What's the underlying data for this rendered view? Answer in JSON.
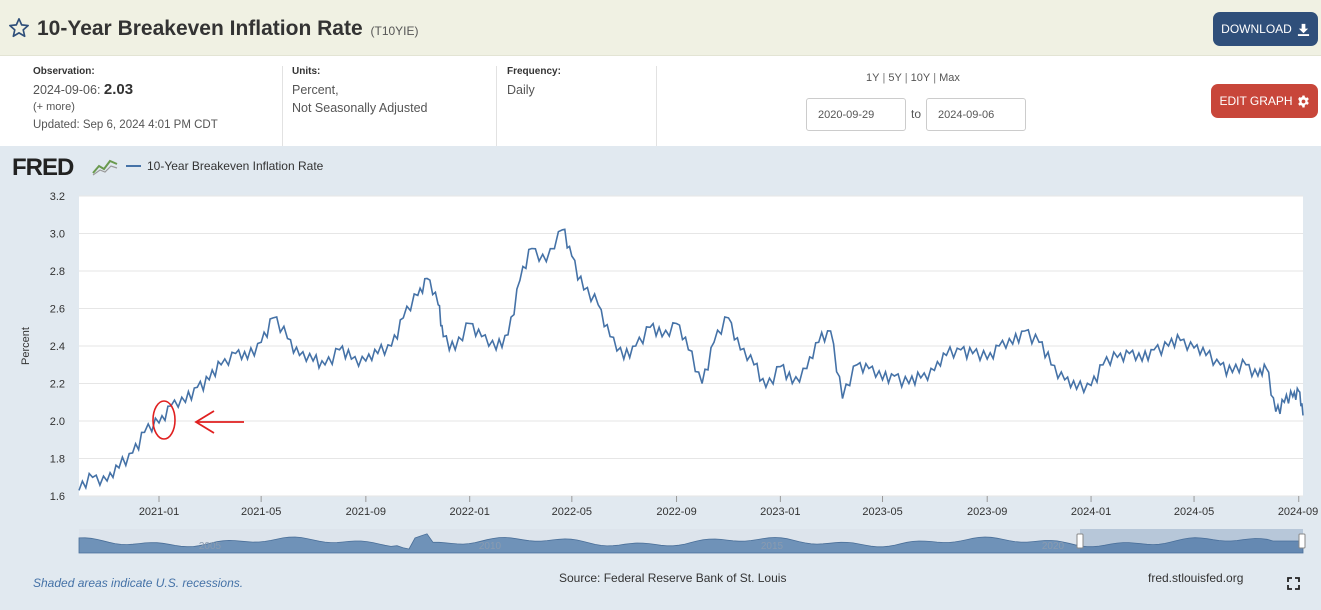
{
  "header": {
    "title": "10-Year Breakeven Inflation Rate",
    "series_id": "(T10YIE)",
    "star_icon": "star-outline-icon",
    "download_label": "DOWNLOAD",
    "download_icon": "download-icon"
  },
  "meta": {
    "observation_label": "Observation:",
    "observation_date": "2024-09-06:",
    "observation_value": "2.03",
    "more": "(+ more)",
    "updated": "Updated: Sep 6, 2024 4:01 PM CDT",
    "units_label": "Units:",
    "units_line1": "Percent,",
    "units_line2": "Not Seasonally Adjusted",
    "frequency_label": "Frequency:",
    "frequency_value": "Daily"
  },
  "range": {
    "options": [
      "1Y",
      "5Y",
      "10Y",
      "Max"
    ],
    "start": "2020-09-29",
    "to_label": "to",
    "end": "2024-09-06"
  },
  "edit_graph_label": "EDIT GRAPH",
  "edit_icon": "gear-icon",
  "graph": {
    "logo": "FRED",
    "recession_note": "Shaded areas indicate U.S. recessions.",
    "source": "Source: Federal Reserve Bank of St. Louis",
    "url": "fred.stlouisfed.org",
    "fullscreen_icon": "fullscreen-icon",
    "navigator_years": [
      "2005",
      "2010",
      "2015",
      "2020"
    ]
  },
  "colors": {
    "line": "#4572a7",
    "annotation": "#e02020",
    "header_bg": "#f0f1e3",
    "download_bg": "#2f4f7a",
    "edit_bg": "#c8463a"
  },
  "chart_data": {
    "type": "line",
    "ylabel": "Percent",
    "ylim": [
      1.6,
      3.2
    ],
    "yticks": [
      "1.6",
      "1.8",
      "2.0",
      "2.2",
      "2.4",
      "2.6",
      "2.8",
      "3.0",
      "3.2"
    ],
    "xticks": [
      "2021-01",
      "2021-05",
      "2021-09",
      "2022-01",
      "2022-05",
      "2022-09",
      "2023-01",
      "2023-05",
      "2023-09",
      "2024-01",
      "2024-05",
      "2024-09"
    ],
    "grid": true,
    "legend_position": "top-left",
    "series": [
      {
        "name": "10-Year Breakeven Inflation Rate",
        "points": [
          [
            "2020-09-29",
            1.63
          ],
          [
            "2020-10-15",
            1.7
          ],
          [
            "2020-11-01",
            1.68
          ],
          [
            "2020-11-15",
            1.75
          ],
          [
            "2020-12-01",
            1.83
          ],
          [
            "2020-12-15",
            1.94
          ],
          [
            "2021-01-01",
            1.99
          ],
          [
            "2021-01-15",
            2.08
          ],
          [
            "2021-02-01",
            2.1
          ],
          [
            "2021-02-15",
            2.18
          ],
          [
            "2021-03-01",
            2.22
          ],
          [
            "2021-03-15",
            2.3
          ],
          [
            "2021-04-01",
            2.36
          ],
          [
            "2021-04-15",
            2.33
          ],
          [
            "2021-05-01",
            2.42
          ],
          [
            "2021-05-15",
            2.55
          ],
          [
            "2021-06-01",
            2.44
          ],
          [
            "2021-06-15",
            2.35
          ],
          [
            "2021-07-01",
            2.32
          ],
          [
            "2021-07-15",
            2.3
          ],
          [
            "2021-08-01",
            2.38
          ],
          [
            "2021-08-15",
            2.33
          ],
          [
            "2021-09-01",
            2.32
          ],
          [
            "2021-09-15",
            2.36
          ],
          [
            "2021-10-01",
            2.4
          ],
          [
            "2021-10-15",
            2.55
          ],
          [
            "2021-11-01",
            2.67
          ],
          [
            "2021-11-12",
            2.76
          ],
          [
            "2021-11-25",
            2.62
          ],
          [
            "2021-12-01",
            2.45
          ],
          [
            "2021-12-15",
            2.38
          ],
          [
            "2022-01-01",
            2.52
          ],
          [
            "2022-01-15",
            2.45
          ],
          [
            "2022-02-01",
            2.38
          ],
          [
            "2022-02-15",
            2.46
          ],
          [
            "2022-03-01",
            2.75
          ],
          [
            "2022-03-15",
            2.92
          ],
          [
            "2022-04-01",
            2.85
          ],
          [
            "2022-04-20",
            3.02
          ],
          [
            "2022-05-01",
            2.88
          ],
          [
            "2022-05-15",
            2.7
          ],
          [
            "2022-06-01",
            2.62
          ],
          [
            "2022-06-15",
            2.45
          ],
          [
            "2022-07-01",
            2.33
          ],
          [
            "2022-07-15",
            2.4
          ],
          [
            "2022-08-01",
            2.5
          ],
          [
            "2022-08-15",
            2.45
          ],
          [
            "2022-09-01",
            2.52
          ],
          [
            "2022-09-15",
            2.38
          ],
          [
            "2022-10-01",
            2.2
          ],
          [
            "2022-10-15",
            2.42
          ],
          [
            "2022-11-01",
            2.55
          ],
          [
            "2022-11-15",
            2.38
          ],
          [
            "2022-12-01",
            2.3
          ],
          [
            "2022-12-15",
            2.18
          ],
          [
            "2023-01-01",
            2.29
          ],
          [
            "2023-01-15",
            2.2
          ],
          [
            "2023-02-01",
            2.28
          ],
          [
            "2023-02-15",
            2.42
          ],
          [
            "2023-03-01",
            2.48
          ],
          [
            "2023-03-15",
            2.12
          ],
          [
            "2023-04-01",
            2.3
          ],
          [
            "2023-04-15",
            2.28
          ],
          [
            "2023-05-01",
            2.22
          ],
          [
            "2023-05-15",
            2.24
          ],
          [
            "2023-06-01",
            2.2
          ],
          [
            "2023-06-15",
            2.23
          ],
          [
            "2023-07-01",
            2.27
          ],
          [
            "2023-07-15",
            2.35
          ],
          [
            "2023-08-01",
            2.38
          ],
          [
            "2023-08-15",
            2.36
          ],
          [
            "2023-09-01",
            2.33
          ],
          [
            "2023-09-15",
            2.4
          ],
          [
            "2023-10-01",
            2.41
          ],
          [
            "2023-10-15",
            2.48
          ],
          [
            "2023-11-01",
            2.42
          ],
          [
            "2023-11-15",
            2.3
          ],
          [
            "2023-12-01",
            2.22
          ],
          [
            "2023-12-15",
            2.17
          ],
          [
            "2024-01-01",
            2.19
          ],
          [
            "2024-01-15",
            2.3
          ],
          [
            "2024-02-01",
            2.34
          ],
          [
            "2024-02-15",
            2.36
          ],
          [
            "2024-03-01",
            2.32
          ],
          [
            "2024-03-15",
            2.38
          ],
          [
            "2024-04-01",
            2.4
          ],
          [
            "2024-04-15",
            2.43
          ],
          [
            "2024-05-01",
            2.39
          ],
          [
            "2024-05-15",
            2.35
          ],
          [
            "2024-06-01",
            2.3
          ],
          [
            "2024-06-15",
            2.26
          ],
          [
            "2024-07-01",
            2.3
          ],
          [
            "2024-07-15",
            2.24
          ],
          [
            "2024-07-25",
            2.28
          ],
          [
            "2024-08-05",
            2.05
          ],
          [
            "2024-08-15",
            2.1
          ],
          [
            "2024-08-25",
            2.13
          ],
          [
            "2024-09-01",
            2.16
          ],
          [
            "2024-09-06",
            2.03
          ]
        ]
      }
    ]
  }
}
